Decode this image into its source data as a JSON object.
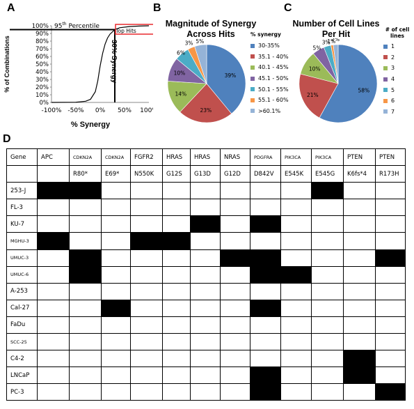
{
  "panels": {
    "a": "A",
    "b": "B",
    "c": "C",
    "d": "D"
  },
  "chart_data": [
    {
      "type": "line",
      "panel": "A",
      "xlabel": "% Synergy",
      "ylabel": "% of Combinations",
      "x_ticks": [
        "-100%",
        "-50%",
        "0%",
        "50%",
        "100%"
      ],
      "y_ticks": [
        "0%",
        "10%",
        "20%",
        "30%",
        "40%",
        "50%",
        "60%",
        "70%",
        "80%",
        "90%",
        "100%"
      ],
      "xlim": [
        -100,
        100
      ],
      "ylim": [
        0,
        100
      ],
      "annotations": {
        "percentile_base": "95",
        "percentile_sup": "th",
        "percentile_rest": " Percentile",
        "top_hits": "Top Hits",
        "synergy_line": "30% Synergy"
      },
      "reference_lines": {
        "vertical_x": 30,
        "horizontal_y": 95
      },
      "series": [
        {
          "x": [
            -100,
            -50,
            -30,
            -20,
            -10,
            -5,
            0,
            5,
            10,
            15,
            20,
            30,
            40,
            60,
            80,
            100
          ],
          "y": [
            0,
            0.3,
            1.5,
            4,
            14,
            28,
            48,
            64,
            76,
            84,
            89,
            95,
            97.5,
            99,
            99.6,
            100
          ]
        }
      ]
    },
    {
      "type": "pie",
      "panel": "B",
      "title": "Magnitude of Synergy Across Hits",
      "legend_title": "% synergy",
      "labels": [
        "30-35%",
        "35.1 - 40%",
        "40.1 - 45%",
        "45.1 - 50%",
        "50.1 - 55%",
        "55.1 - 60%",
        ">60.1%"
      ],
      "values": [
        39,
        23,
        14,
        10,
        6,
        3,
        5
      ],
      "value_labels": [
        "39%",
        "23%",
        "14%",
        "10%",
        "6%",
        "3%",
        "5%"
      ],
      "colors": [
        "#4f81bd",
        "#c0504d",
        "#9bbb59",
        "#8064a2",
        "#4bacc6",
        "#f79646",
        "#95b3d7"
      ]
    },
    {
      "type": "pie",
      "panel": "C",
      "title": "Number of Cell Lines Per Hit",
      "legend_title": "# of cell lines",
      "labels": [
        "1",
        "2",
        "3",
        "4",
        "5",
        "6",
        "7"
      ],
      "values": [
        58,
        21,
        10,
        5,
        3,
        1,
        2
      ],
      "value_labels": [
        "58%",
        "21%",
        "10%",
        "5%",
        "3%",
        "1%",
        "2%"
      ],
      "colors": [
        "#4f81bd",
        "#c0504d",
        "#9bbb59",
        "#8064a2",
        "#4bacc6",
        "#f79646",
        "#95b3d7"
      ]
    }
  ],
  "table": {
    "genes": [
      "APC",
      "CDKN2A",
      "CDKN2A",
      "FGFR2",
      "HRAS",
      "HRAS",
      "NRAS",
      "PDGFRA",
      "PIK3CA",
      "PIK3CA",
      "PTEN",
      "PTEN"
    ],
    "mutations": [
      "",
      "R80*",
      "E69*",
      "N550K",
      "G12S",
      "G13D",
      "G12D",
      "D842V",
      "E545K",
      "E545G",
      "K6fs*4",
      "R173H"
    ],
    "header_label": "Gene",
    "rows": [
      {
        "name": "253-J",
        "cells": [
          1,
          1,
          0,
          0,
          0,
          0,
          0,
          0,
          0,
          1,
          0,
          0
        ]
      },
      {
        "name": "FL-3",
        "cells": [
          0,
          0,
          0,
          0,
          0,
          0,
          0,
          0,
          0,
          0,
          0,
          0
        ]
      },
      {
        "name": "KU-7",
        "cells": [
          0,
          0,
          0,
          0,
          0,
          1,
          0,
          1,
          0,
          0,
          0,
          0
        ]
      },
      {
        "name": "MGHU-3",
        "cells": [
          1,
          0,
          0,
          1,
          1,
          0,
          0,
          0,
          0,
          0,
          0,
          0
        ]
      },
      {
        "name": "UMUC-3",
        "cells": [
          0,
          1,
          0,
          0,
          0,
          0,
          1,
          1,
          0,
          0,
          0,
          1
        ]
      },
      {
        "name": "UMUC-6",
        "cells": [
          0,
          1,
          0,
          0,
          0,
          0,
          0,
          1,
          1,
          0,
          0,
          0
        ]
      },
      {
        "name": "A-253",
        "cells": [
          0,
          0,
          0,
          0,
          0,
          0,
          0,
          0,
          0,
          0,
          0,
          0
        ]
      },
      {
        "name": "Cal-27",
        "cells": [
          0,
          0,
          1,
          0,
          0,
          0,
          0,
          1,
          0,
          0,
          0,
          0
        ]
      },
      {
        "name": "FaDu",
        "cells": [
          0,
          0,
          0,
          0,
          0,
          0,
          0,
          0,
          0,
          0,
          0,
          0
        ]
      },
      {
        "name": "SCC-25",
        "cells": [
          0,
          0,
          0,
          0,
          0,
          0,
          0,
          0,
          0,
          0,
          0,
          0
        ]
      },
      {
        "name": "C4-2",
        "cells": [
          0,
          0,
          0,
          0,
          0,
          0,
          0,
          0,
          0,
          0,
          1,
          0
        ]
      },
      {
        "name": "LNCaP",
        "cells": [
          0,
          0,
          0,
          0,
          0,
          0,
          0,
          1,
          0,
          0,
          1,
          0
        ]
      },
      {
        "name": "PC-3",
        "cells": [
          0,
          0,
          0,
          0,
          0,
          0,
          0,
          1,
          0,
          0,
          0,
          1
        ]
      }
    ]
  }
}
